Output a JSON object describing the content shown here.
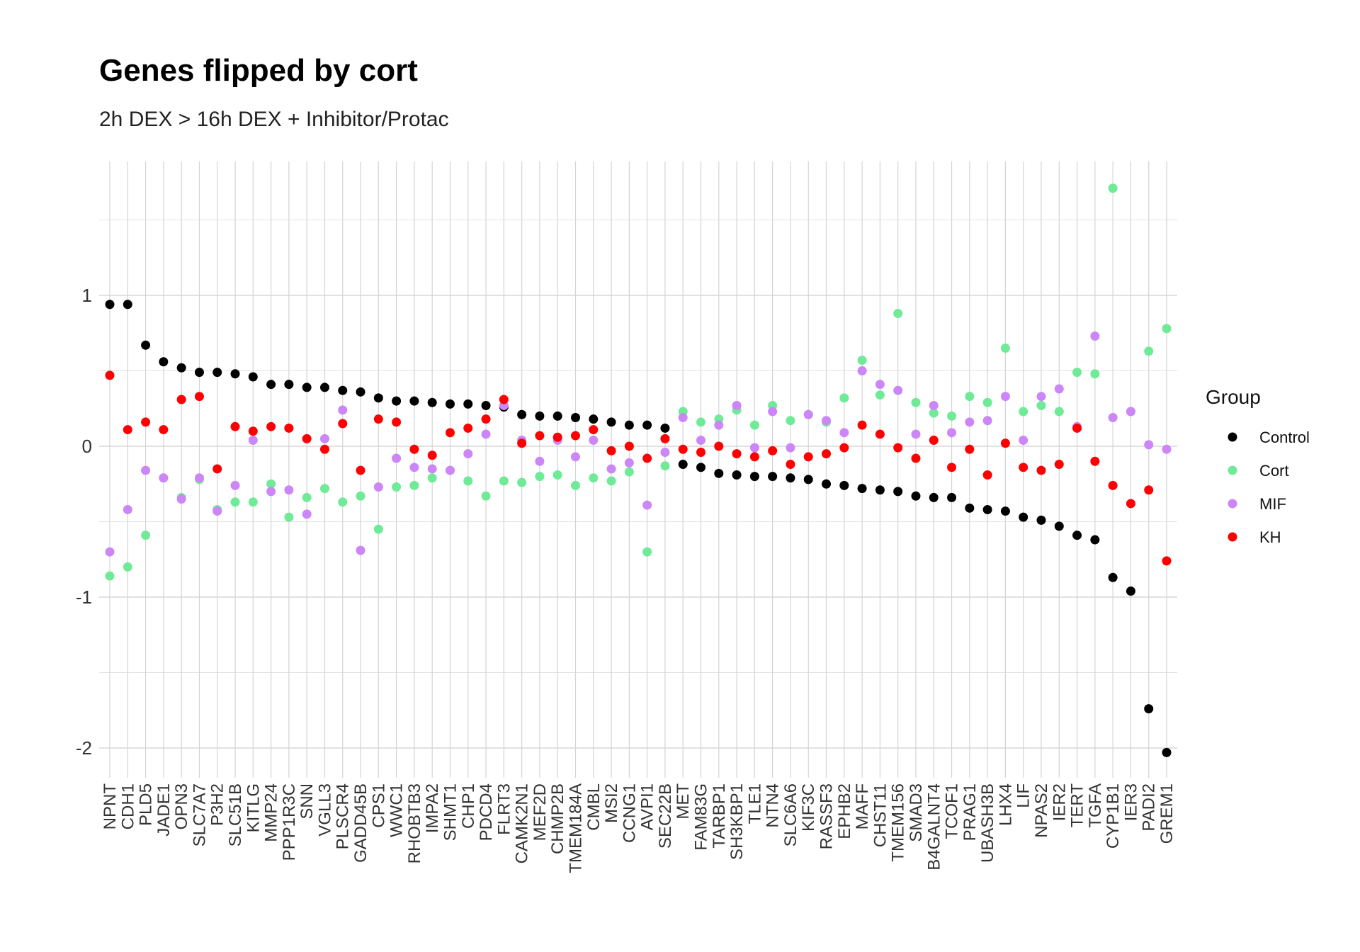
{
  "chart_data": {
    "type": "scatter",
    "title": "Genes flipped by cort",
    "subtitle": "2h DEX > 16h DEX + Inhibitor/Protac",
    "xlabel": "",
    "ylabel": "",
    "ylim": [
      -2.2,
      1.9
    ],
    "y_ticks": [
      1,
      0,
      -1,
      -2
    ],
    "y_tick_labels": [
      "1",
      "0",
      "-1",
      "-2"
    ],
    "grid": true,
    "legend_title": "Group",
    "legend_position": "right",
    "categories": [
      "NPNT",
      "CDH1",
      "PLD5",
      "JADE1",
      "OPN3",
      "SLC7A7",
      "P3H2",
      "SLC51B",
      "KITLG",
      "MMP24",
      "PPP1R3C",
      "SNN",
      "VGLL3",
      "PLSCR4",
      "GADD45B",
      "CPS1",
      "WWC1",
      "RHOBTB3",
      "IMPA2",
      "SHMT1",
      "CHP1",
      "PDCD4",
      "FLRT3",
      "CAMK2N1",
      "MEF2D",
      "CHMP2B",
      "TMEM184A",
      "CMBL",
      "MSI2",
      "CCNG1",
      "AVPI1",
      "SEC22B",
      "MET",
      "FAM83G",
      "TARBP1",
      "SH3KBP1",
      "TLE1",
      "NTN4",
      "SLC6A6",
      "KIF3C",
      "RASSF3",
      "EPHB2",
      "MAFF",
      "CHST11",
      "TMEM156",
      "SMAD3",
      "B4GALNT4",
      "TCOF1",
      "PRAG1",
      "UBASH3B",
      "LHX4",
      "LIF",
      "NPAS2",
      "IER2",
      "TERT",
      "TGFA",
      "CYP1B1",
      "IER3",
      "PADI2",
      "GREM1"
    ],
    "series": [
      {
        "name": "Control",
        "color": "#000000",
        "values": [
          0.94,
          0.94,
          0.67,
          0.56,
          0.52,
          0.49,
          0.49,
          0.48,
          0.46,
          0.41,
          0.41,
          0.39,
          0.39,
          0.37,
          0.36,
          0.32,
          0.3,
          0.3,
          0.29,
          0.28,
          0.28,
          0.27,
          0.26,
          0.21,
          0.2,
          0.2,
          0.19,
          0.18,
          0.16,
          0.14,
          0.14,
          0.12,
          -0.12,
          -0.14,
          -0.18,
          -0.19,
          -0.2,
          -0.2,
          -0.21,
          -0.22,
          -0.25,
          -0.26,
          -0.28,
          -0.29,
          -0.3,
          -0.33,
          -0.34,
          -0.34,
          -0.41,
          -0.42,
          -0.43,
          -0.47,
          -0.49,
          -0.53,
          -0.59,
          -0.62,
          -0.87,
          -0.96,
          -1.74,
          -2.03
        ]
      },
      {
        "name": "Cort",
        "color": "#6FEB98",
        "values": [
          -0.86,
          -0.8,
          -0.59,
          -0.21,
          -0.34,
          -0.22,
          -0.42,
          -0.37,
          -0.37,
          -0.25,
          -0.47,
          -0.34,
          -0.28,
          -0.37,
          -0.33,
          -0.55,
          -0.27,
          -0.26,
          -0.21,
          -0.16,
          -0.23,
          -0.33,
          -0.23,
          -0.24,
          -0.2,
          -0.19,
          -0.26,
          -0.21,
          -0.23,
          -0.17,
          -0.7,
          -0.13,
          0.23,
          0.16,
          0.18,
          0.24,
          0.14,
          0.27,
          0.17,
          0.21,
          0.16,
          0.32,
          0.57,
          0.34,
          0.88,
          0.29,
          0.22,
          0.2,
          0.33,
          0.29,
          0.65,
          0.23,
          0.27,
          0.23,
          0.49,
          0.48,
          1.71,
          0.23,
          0.63,
          0.78
        ]
      },
      {
        "name": "MIF",
        "color": "#CC86F7",
        "values": [
          -0.7,
          -0.42,
          -0.16,
          -0.21,
          -0.35,
          -0.21,
          -0.43,
          -0.26,
          0.04,
          -0.3,
          -0.29,
          -0.45,
          0.05,
          0.24,
          -0.69,
          -0.27,
          -0.08,
          -0.14,
          -0.15,
          -0.16,
          -0.05,
          0.08,
          0.27,
          0.04,
          -0.1,
          0.04,
          -0.07,
          0.04,
          -0.15,
          -0.11,
          -0.39,
          -0.04,
          0.19,
          0.04,
          0.14,
          0.27,
          -0.01,
          0.23,
          -0.01,
          0.21,
          0.17,
          0.09,
          0.5,
          0.41,
          0.37,
          0.08,
          0.27,
          0.09,
          0.16,
          0.17,
          0.33,
          0.04,
          0.33,
          0.38,
          0.13,
          0.73,
          0.19,
          0.23,
          0.01,
          -0.02
        ]
      },
      {
        "name": "KH",
        "color": "#FF0000",
        "values": [
          0.47,
          0.11,
          0.16,
          0.11,
          0.31,
          0.33,
          -0.15,
          0.13,
          0.1,
          0.13,
          0.12,
          0.05,
          -0.02,
          0.15,
          -0.16,
          0.18,
          0.16,
          -0.02,
          -0.06,
          0.09,
          0.12,
          0.18,
          0.31,
          0.02,
          0.07,
          0.06,
          0.07,
          0.11,
          -0.03,
          0.0,
          -0.08,
          0.05,
          -0.02,
          -0.04,
          0.0,
          -0.05,
          -0.07,
          -0.03,
          -0.12,
          -0.07,
          -0.05,
          -0.01,
          0.14,
          0.08,
          -0.01,
          -0.08,
          0.04,
          -0.14,
          -0.02,
          -0.19,
          0.02,
          -0.14,
          -0.16,
          -0.12,
          0.12,
          -0.1,
          -0.26,
          -0.38,
          -0.29,
          -0.76
        ]
      }
    ]
  }
}
